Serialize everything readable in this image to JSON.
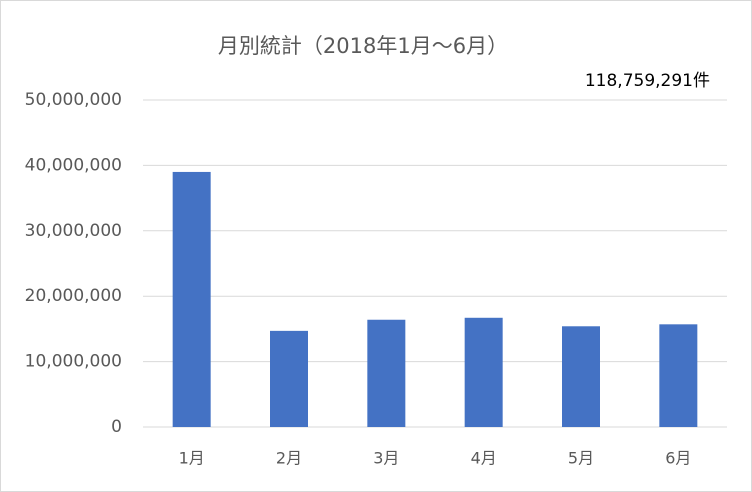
{
  "chart_data": {
    "type": "bar",
    "title": "月別統計（2018年1月～6月）",
    "annotation": "118,759,291件",
    "categories": [
      "1月",
      "2月",
      "3月",
      "4月",
      "5月",
      "6月"
    ],
    "values": [
      39000000,
      14700000,
      16400000,
      16700000,
      15400000,
      15700000
    ],
    "color": "#4472c4",
    "ylim": [
      0,
      50000000
    ],
    "yticks": [
      0,
      {
        "value": 10000000,
        "label": "10,000,000"
      },
      {
        "value": 20000000,
        "label": "20,000,000"
      },
      {
        "value": 30000000,
        "label": "30,000,000"
      },
      {
        "value": 40000000,
        "label": "40,000,000"
      },
      {
        "value": 50000000,
        "label": "50,000,000"
      }
    ],
    "grid": true
  }
}
